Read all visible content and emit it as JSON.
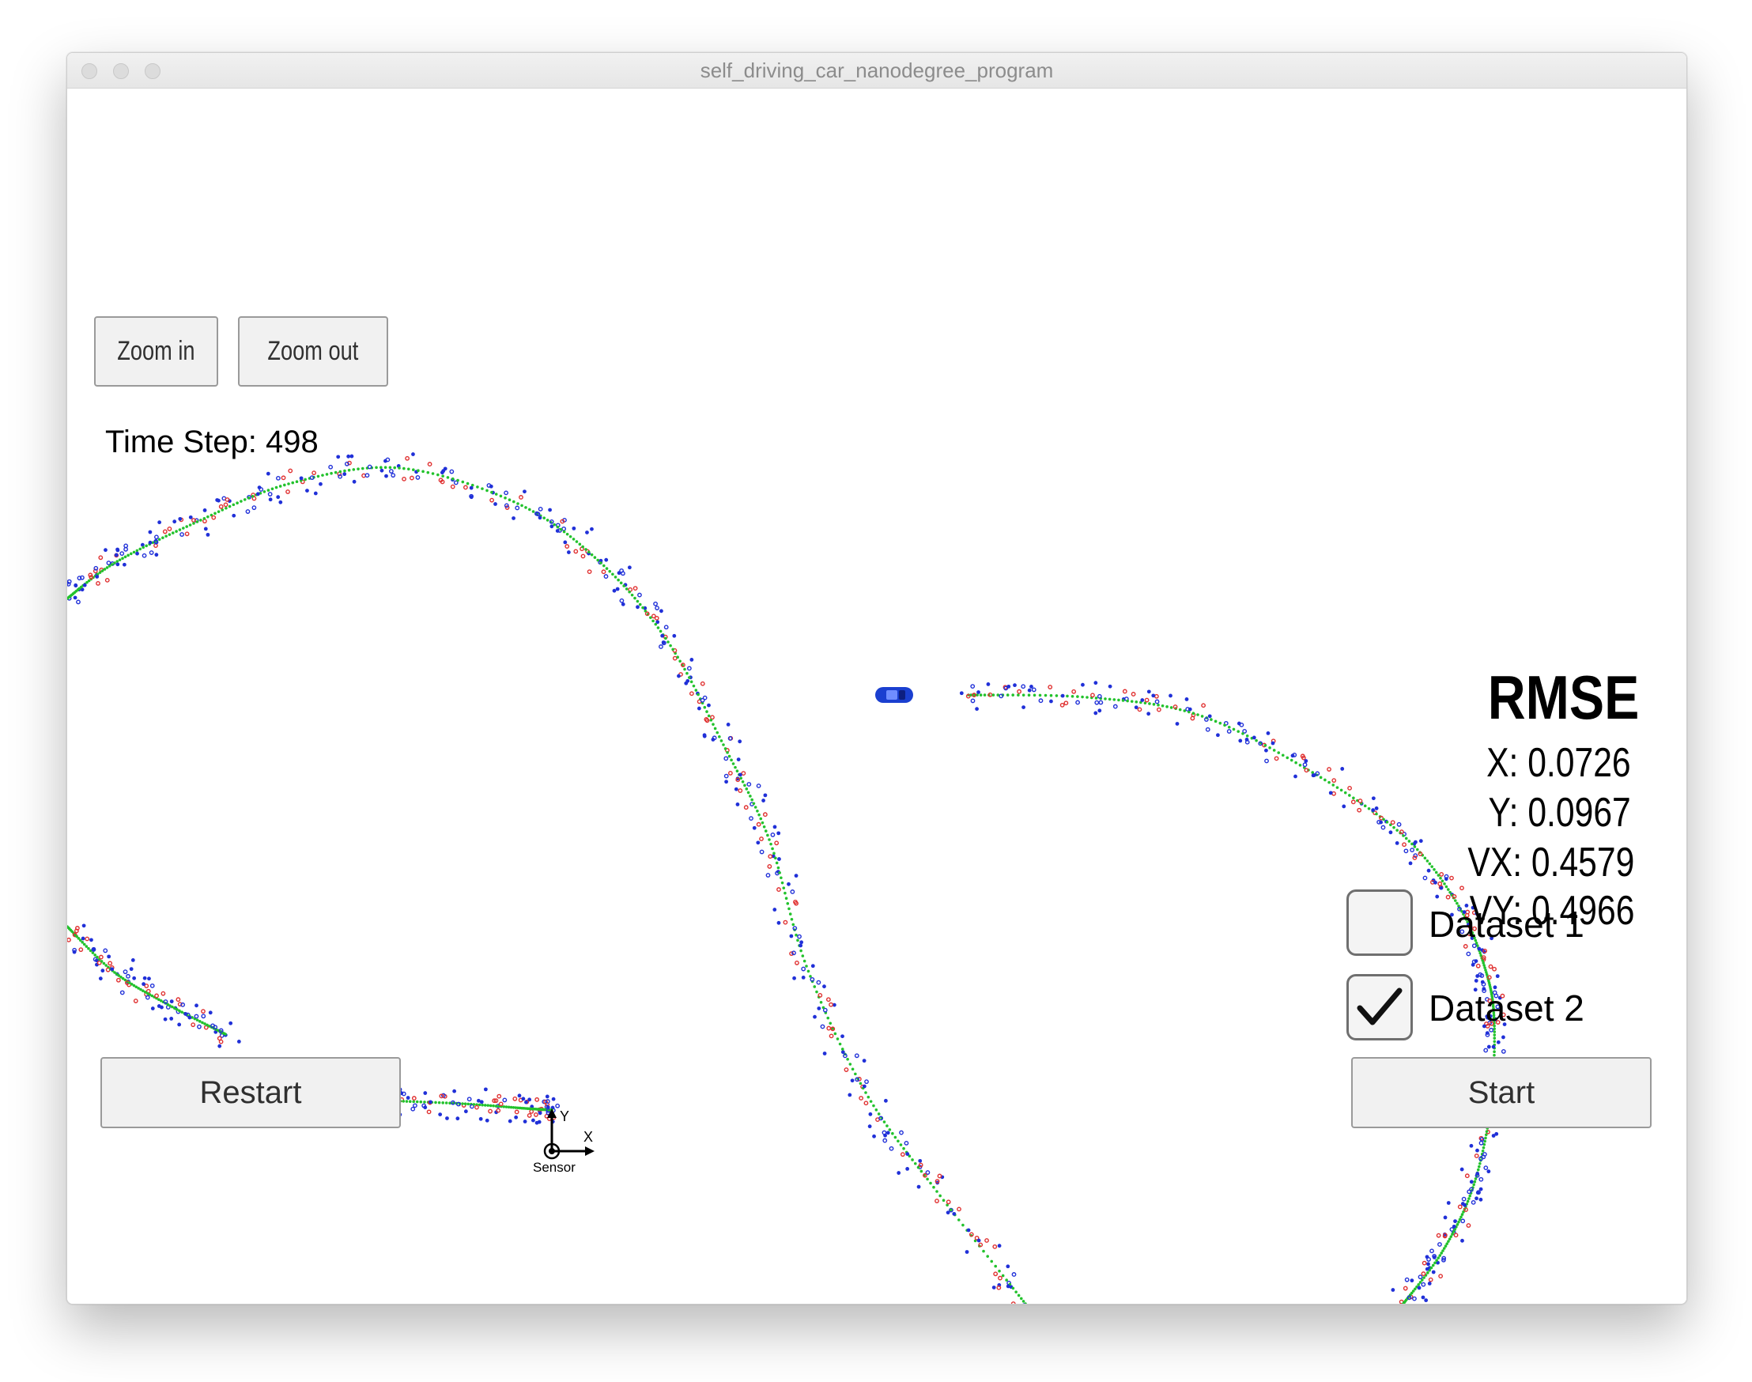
{
  "window": {
    "title": "self_driving_car_nanodegree_program"
  },
  "toolbar": {
    "zoom_in_label": "Zoom in",
    "zoom_out_label": "Zoom out"
  },
  "time_step": "Time Step: 498",
  "rmse": {
    "title": "RMSE",
    "x": "X: 0.0726",
    "y": "Y: 0.0967",
    "vx": "VX: 0.4579",
    "vy": "VY: 0.4966"
  },
  "datasets": [
    {
      "label": "Dataset 1",
      "checked": false
    },
    {
      "label": "Dataset 2",
      "checked": true
    }
  ],
  "controls": {
    "restart_label": "Restart",
    "start_label": "Start"
  },
  "sensor": {
    "label": "Sensor",
    "x_axis": "X",
    "y_axis": "Y"
  },
  "colors": {
    "ground_truth": "#22c22c",
    "radar": "#2030d8",
    "lidar": "#e03030",
    "car": "#1a3fd0"
  },
  "icons": [
    "check-icon",
    "car-icon",
    "sensor-axes-icon"
  ]
}
